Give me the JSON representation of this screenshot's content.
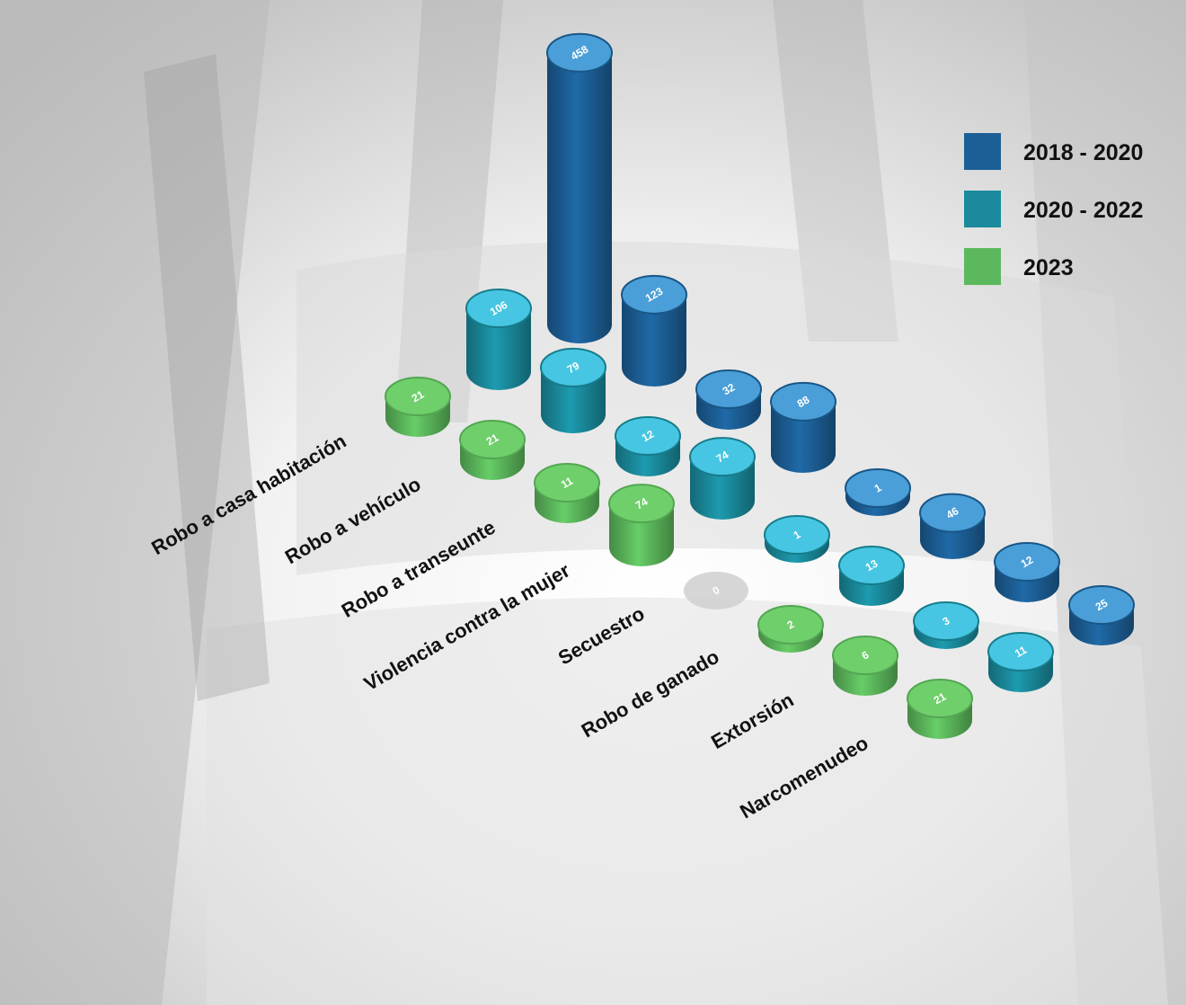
{
  "chart_data": {
    "type": "bar",
    "style": "3d-cylinder",
    "title": "",
    "categories": [
      "Robo a casa habitación",
      "Robo a vehículo",
      "Robo a transeunte",
      "Violencia contra la mujer",
      "Secuestro",
      "Robo de ganado",
      "Extorsión",
      "Narcomenudeo"
    ],
    "series": [
      {
        "name": "2018 - 2020",
        "color": "#1c5f96",
        "top_color": "#4a9fd8",
        "values": [
          458,
          123,
          32,
          88,
          1,
          46,
          12,
          25
        ]
      },
      {
        "name": "2020 - 2022",
        "color": "#1a8a9c",
        "top_color": "#46c6e2",
        "values": [
          106,
          79,
          12,
          74,
          1,
          13,
          3,
          11
        ]
      },
      {
        "name": "2023",
        "color": "#5cb85c",
        "top_color": "#6fcf6a",
        "values": [
          21,
          21,
          11,
          74,
          0,
          2,
          6,
          21
        ]
      }
    ],
    "zero_color": "#cfcfcf",
    "legend_position": "top-right",
    "grid": false
  }
}
